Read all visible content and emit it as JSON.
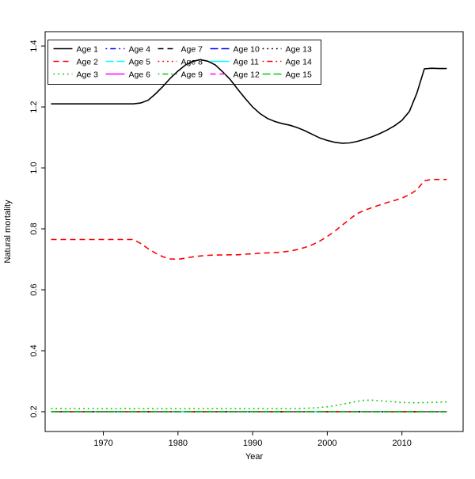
{
  "chart_data": {
    "type": "line",
    "title": "",
    "xlabel": "Year",
    "ylabel": "Natural mortality",
    "xlim": [
      1963,
      2016
    ],
    "ylim": [
      0.2,
      1.4
    ],
    "x_range": [
      1962.2,
      2018.2
    ],
    "y_range": [
      0.135,
      1.447
    ],
    "x_ticks": [
      1970,
      1980,
      1990,
      2000,
      2010
    ],
    "y_ticks": [
      0.2,
      0.4,
      0.6,
      0.8,
      1.0,
      1.2,
      1.4
    ],
    "grid": false,
    "legend_position": "top-left",
    "legend_columns": 5,
    "legend_rows": 3,
    "colors": {
      "black": "#000000",
      "red": "#FF0000",
      "green": "#00CD00",
      "blue": "#0000FF",
      "cyan": "#00FFFF",
      "magenta": "#FF00FF"
    },
    "series": [
      {
        "name": "Age 1",
        "color": "#000000",
        "linestyle": "solid",
        "points": [
          [
            1963,
            1.21
          ],
          [
            1974,
            1.21
          ],
          [
            1975,
            1.213
          ],
          [
            1976,
            1.222
          ],
          [
            1977,
            1.243
          ],
          [
            1978,
            1.268
          ],
          [
            1979,
            1.295
          ],
          [
            1980,
            1.318
          ],
          [
            1981,
            1.338
          ],
          [
            1982,
            1.35
          ],
          [
            1983,
            1.355
          ],
          [
            1984,
            1.35
          ],
          [
            1985,
            1.338
          ],
          [
            1986,
            1.315
          ],
          [
            1987,
            1.29
          ],
          [
            1988,
            1.258
          ],
          [
            1989,
            1.228
          ],
          [
            1990,
            1.2
          ],
          [
            1991,
            1.178
          ],
          [
            1992,
            1.162
          ],
          [
            1993,
            1.152
          ],
          [
            1994,
            1.145
          ],
          [
            1995,
            1.14
          ],
          [
            1996,
            1.132
          ],
          [
            1997,
            1.122
          ],
          [
            1998,
            1.11
          ],
          [
            1999,
            1.098
          ],
          [
            2000,
            1.09
          ],
          [
            2001,
            1.084
          ],
          [
            2002,
            1.081
          ],
          [
            2003,
            1.082
          ],
          [
            2004,
            1.087
          ],
          [
            2005,
            1.094
          ],
          [
            2006,
            1.102
          ],
          [
            2007,
            1.112
          ],
          [
            2008,
            1.124
          ],
          [
            2009,
            1.138
          ],
          [
            2010,
            1.156
          ],
          [
            2011,
            1.185
          ],
          [
            2012,
            1.245
          ],
          [
            2013,
            1.325
          ],
          [
            2014,
            1.327
          ],
          [
            2015,
            1.326
          ],
          [
            2016,
            1.326
          ]
        ]
      },
      {
        "name": "Age 2",
        "color": "#FF0000",
        "linestyle": "dashed",
        "points": [
          [
            1963,
            0.765
          ],
          [
            1974,
            0.765
          ],
          [
            1975,
            0.752
          ],
          [
            1976,
            0.735
          ],
          [
            1977,
            0.72
          ],
          [
            1978,
            0.708
          ],
          [
            1979,
            0.701
          ],
          [
            1980,
            0.7
          ],
          [
            1981,
            0.704
          ],
          [
            1982,
            0.708
          ],
          [
            1983,
            0.711
          ],
          [
            1984,
            0.713
          ],
          [
            1985,
            0.714
          ],
          [
            1986,
            0.714
          ],
          [
            1987,
            0.715
          ],
          [
            1988,
            0.715
          ],
          [
            1989,
            0.717
          ],
          [
            1990,
            0.718
          ],
          [
            1991,
            0.72
          ],
          [
            1992,
            0.721
          ],
          [
            1993,
            0.722
          ],
          [
            1994,
            0.724
          ],
          [
            1995,
            0.727
          ],
          [
            1996,
            0.732
          ],
          [
            1997,
            0.739
          ],
          [
            1998,
            0.748
          ],
          [
            1999,
            0.76
          ],
          [
            2000,
            0.775
          ],
          [
            2001,
            0.792
          ],
          [
            2002,
            0.812
          ],
          [
            2003,
            0.832
          ],
          [
            2004,
            0.85
          ],
          [
            2005,
            0.861
          ],
          [
            2006,
            0.87
          ],
          [
            2007,
            0.878
          ],
          [
            2008,
            0.886
          ],
          [
            2009,
            0.893
          ],
          [
            2010,
            0.901
          ],
          [
            2011,
            0.912
          ],
          [
            2012,
            0.928
          ],
          [
            2013,
            0.958
          ],
          [
            2014,
            0.962
          ],
          [
            2015,
            0.962
          ],
          [
            2016,
            0.962
          ]
        ]
      },
      {
        "name": "Age 3",
        "color": "#00CD00",
        "linestyle": "dotted",
        "points": [
          [
            1963,
            0.21
          ],
          [
            1995,
            0.21
          ],
          [
            1998,
            0.212
          ],
          [
            2000,
            0.216
          ],
          [
            2002,
            0.224
          ],
          [
            2004,
            0.234
          ],
          [
            2005,
            0.238
          ],
          [
            2006,
            0.238
          ],
          [
            2007,
            0.236
          ],
          [
            2008,
            0.234
          ],
          [
            2009,
            0.232
          ],
          [
            2010,
            0.23
          ],
          [
            2012,
            0.229
          ],
          [
            2013,
            0.23
          ],
          [
            2016,
            0.232
          ]
        ]
      },
      {
        "name": "Age 4",
        "color": "#0000FF",
        "linestyle": "dotdash",
        "points": [
          [
            1963,
            0.2
          ],
          [
            2016,
            0.2
          ]
        ]
      },
      {
        "name": "Age 5",
        "color": "#00FFFF",
        "linestyle": "longdash",
        "points": [
          [
            1963,
            0.2
          ],
          [
            2016,
            0.2
          ]
        ]
      },
      {
        "name": "Age 6",
        "color": "#FF00FF",
        "linestyle": "solid",
        "points": [
          [
            1963,
            0.2
          ],
          [
            2016,
            0.2
          ]
        ]
      },
      {
        "name": "Age 7",
        "color": "#000000",
        "linestyle": "dashed",
        "points": [
          [
            1963,
            0.2
          ],
          [
            2016,
            0.2
          ]
        ]
      },
      {
        "name": "Age 8",
        "color": "#FF0000",
        "linestyle": "dotted",
        "points": [
          [
            1963,
            0.2
          ],
          [
            2016,
            0.2
          ]
        ]
      },
      {
        "name": "Age 9",
        "color": "#00CD00",
        "linestyle": "dotdash",
        "points": [
          [
            1963,
            0.2
          ],
          [
            2016,
            0.2
          ]
        ]
      },
      {
        "name": "Age 10",
        "color": "#0000FF",
        "linestyle": "longdash",
        "points": [
          [
            1963,
            0.2
          ],
          [
            2016,
            0.2
          ]
        ]
      },
      {
        "name": "Age 11",
        "color": "#00FFFF",
        "linestyle": "solid",
        "points": [
          [
            1963,
            0.2
          ],
          [
            2016,
            0.2
          ]
        ]
      },
      {
        "name": "Age 12",
        "color": "#FF00FF",
        "linestyle": "dashed",
        "points": [
          [
            1963,
            0.2
          ],
          [
            2016,
            0.2
          ]
        ]
      },
      {
        "name": "Age 13",
        "color": "#000000",
        "linestyle": "dotted",
        "points": [
          [
            1963,
            0.2
          ],
          [
            2016,
            0.2
          ]
        ]
      },
      {
        "name": "Age 14",
        "color": "#FF0000",
        "linestyle": "dotdash",
        "points": [
          [
            1963,
            0.2
          ],
          [
            2016,
            0.2
          ]
        ]
      },
      {
        "name": "Age 15",
        "color": "#00CD00",
        "linestyle": "longdash",
        "points": [
          [
            1963,
            0.2
          ],
          [
            2016,
            0.2
          ]
        ]
      }
    ]
  }
}
